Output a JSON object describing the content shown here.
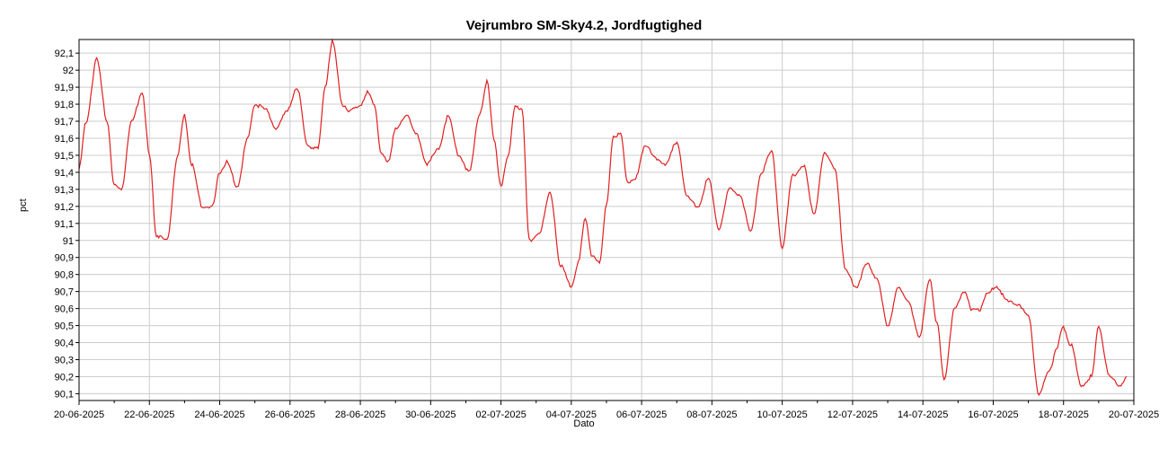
{
  "chart_data": {
    "type": "line",
    "title": "Vejrumbro SM-Sky4.2, Jordfugtighed",
    "xlabel": "Dato",
    "ylabel": "pct",
    "x_ticks": [
      "20-06-2025",
      "22-06-2025",
      "24-06-2025",
      "26-06-2025",
      "28-06-2025",
      "30-06-2025",
      "02-07-2025",
      "04-07-2025",
      "06-07-2025",
      "08-07-2025",
      "10-07-2025",
      "12-07-2025",
      "14-07-2025",
      "16-07-2025",
      "18-07-2025",
      "20-07-2025"
    ],
    "y_ticks": [
      "90,1",
      "90,2",
      "90,3",
      "90,4",
      "90,5",
      "90,6",
      "90,7",
      "90,8",
      "90,9",
      "91",
      "91,1",
      "91,2",
      "91,3",
      "91,4",
      "91,5",
      "91,6",
      "91,7",
      "91,8",
      "91,9",
      "92",
      "92,1"
    ],
    "xlim": [
      "2025-06-20",
      "2025-07-20"
    ],
    "ylim": [
      90.06,
      92.18
    ],
    "grid": true,
    "color": "#e02020",
    "series": [
      {
        "x": [
          0,
          0.2,
          0.5,
          0.8,
          1.0,
          1.2,
          1.5,
          1.8,
          2.0,
          2.2,
          2.5,
          2.8,
          3.0,
          3.2,
          3.5,
          3.8,
          4.0,
          4.2,
          4.5,
          4.8,
          5.0,
          5.3,
          5.6,
          5.9,
          6.2,
          6.5,
          6.8,
          7.0,
          7.2,
          7.5,
          7.7,
          8.0,
          8.2,
          8.4,
          8.6,
          8.8,
          9.0,
          9.3,
          9.6,
          9.9,
          10.2,
          10.5,
          10.8,
          11.1,
          11.4,
          11.6,
          11.8,
          12.0,
          12.2,
          12.4,
          12.6,
          12.8,
          13.1,
          13.4,
          13.7,
          14.0,
          14.2,
          14.4,
          14.6,
          14.8,
          15.0,
          15.2,
          15.4,
          15.6,
          15.8,
          16.1,
          16.4,
          16.7,
          17.0,
          17.3,
          17.6,
          17.9,
          18.2,
          18.5,
          18.8,
          19.1,
          19.4,
          19.7,
          20.0,
          20.3,
          20.6,
          20.9,
          21.2,
          21.5,
          21.8,
          22.1,
          22.4,
          22.7,
          23.0,
          23.3,
          23.6,
          23.9,
          24.2,
          24.4,
          24.6,
          24.9,
          25.2,
          25.4,
          25.6,
          25.8,
          26.1,
          26.4,
          26.7,
          27.0,
          27.3,
          27.6,
          27.8,
          28.0,
          28.2,
          28.5,
          28.8,
          29.0,
          29.3,
          29.6,
          29.8
        ],
        "y": [
          91.42,
          91.7,
          92.06,
          91.7,
          91.32,
          91.3,
          91.7,
          91.87,
          91.5,
          91.03,
          91.0,
          91.5,
          91.73,
          91.45,
          91.2,
          91.2,
          91.4,
          91.46,
          91.32,
          91.6,
          91.8,
          91.77,
          91.66,
          91.75,
          91.9,
          91.55,
          91.55,
          91.9,
          92.17,
          91.8,
          91.76,
          91.8,
          91.87,
          91.8,
          91.5,
          91.47,
          91.65,
          91.74,
          91.62,
          91.45,
          91.53,
          91.73,
          91.5,
          91.4,
          91.75,
          91.93,
          91.6,
          91.31,
          91.5,
          91.78,
          91.78,
          91.0,
          91.05,
          91.28,
          90.85,
          90.73,
          90.87,
          91.13,
          90.9,
          90.87,
          91.2,
          91.62,
          91.62,
          91.35,
          91.35,
          91.56,
          91.48,
          91.45,
          91.58,
          91.25,
          91.2,
          91.36,
          91.07,
          91.3,
          91.27,
          91.05,
          91.4,
          91.52,
          90.96,
          91.38,
          91.44,
          91.15,
          91.51,
          91.42,
          90.82,
          90.73,
          90.86,
          90.78,
          90.49,
          90.73,
          90.63,
          90.44,
          90.77,
          90.52,
          90.18,
          90.6,
          90.7,
          90.59,
          90.59,
          90.68,
          90.73,
          90.64,
          90.63,
          90.55,
          90.1,
          90.23,
          90.37,
          90.49,
          90.39,
          90.15,
          90.2,
          90.5,
          90.2,
          90.15,
          90.2
        ]
      }
    ]
  }
}
